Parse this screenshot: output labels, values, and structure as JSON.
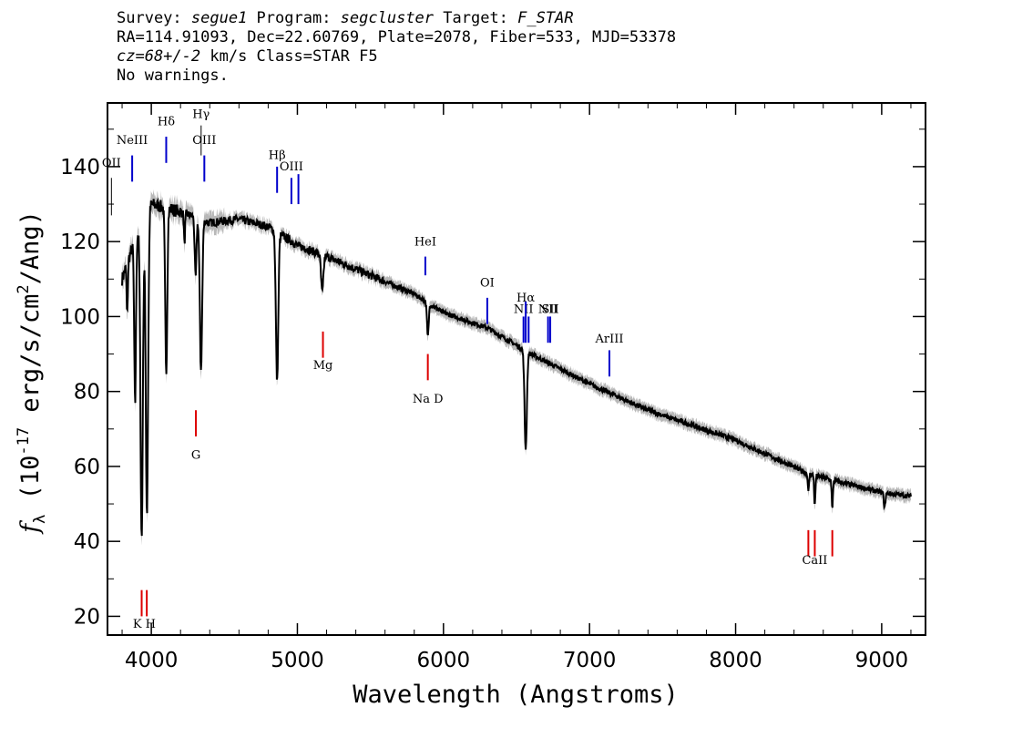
{
  "header": {
    "line1": {
      "survey_label": "Survey: ",
      "survey": "segue1",
      "program_label": " Program: ",
      "program": "segcluster",
      "target_label": " Target: ",
      "target": "F_STAR"
    },
    "line2": "RA=114.91093, Dec=22.60769, Plate=2078, Fiber=533, MJD=53378",
    "line3": {
      "cz": "cz=68+/-2",
      "rest": " km/s Class=STAR F5"
    },
    "line4": "No warnings."
  },
  "chart_data": {
    "type": "line",
    "xlabel": "Wavelength (Angstroms)",
    "ylabel_parts": {
      "f": "f",
      "sub": "λ",
      "open": " (10",
      "exp1": "-17",
      "mid": " erg/s/cm",
      "exp2": "2",
      "close": "/Ang)"
    },
    "xlim": [
      3700,
      9300
    ],
    "ylim": [
      15,
      157
    ],
    "xticks": [
      4000,
      5000,
      6000,
      7000,
      8000,
      9000
    ],
    "yticks": [
      20,
      40,
      60,
      80,
      100,
      120,
      140
    ],
    "continuum": [
      [
        3800,
        110
      ],
      [
        3900,
        122
      ],
      [
        4000,
        130
      ],
      [
        4200,
        128
      ],
      [
        4400,
        125
      ],
      [
        4600,
        126
      ],
      [
        4800,
        124
      ],
      [
        5000,
        119
      ],
      [
        5200,
        116
      ],
      [
        5500,
        111
      ],
      [
        5800,
        106
      ],
      [
        6000,
        101
      ],
      [
        6300,
        97
      ],
      [
        6600,
        90
      ],
      [
        7000,
        82
      ],
      [
        7400,
        75
      ],
      [
        8000,
        67
      ],
      [
        8500,
        58
      ],
      [
        9000,
        53
      ],
      [
        9200,
        52
      ]
    ],
    "absorption": [
      {
        "x": 3835,
        "depth": 14,
        "width": 4
      },
      {
        "x": 3889,
        "depth": 44,
        "width": 6
      },
      {
        "x": 3934,
        "depth": 84,
        "width": 8
      },
      {
        "x": 3970,
        "depth": 80,
        "width": 8
      },
      {
        "x": 4102,
        "depth": 44,
        "width": 7
      },
      {
        "x": 4227,
        "depth": 8,
        "width": 4
      },
      {
        "x": 4303,
        "depth": 16,
        "width": 6
      },
      {
        "x": 4340,
        "depth": 40,
        "width": 8
      },
      {
        "x": 4861,
        "depth": 40,
        "width": 8
      },
      {
        "x": 5170,
        "depth": 10,
        "width": 8
      },
      {
        "x": 5893,
        "depth": 9,
        "width": 6
      },
      {
        "x": 6563,
        "depth": 26,
        "width": 8
      },
      {
        "x": 8498,
        "depth": 5,
        "width": 4
      },
      {
        "x": 8542,
        "depth": 8,
        "width": 4
      },
      {
        "x": 8662,
        "depth": 8,
        "width": 4
      },
      {
        "x": 9020,
        "depth": 4,
        "width": 5
      }
    ],
    "emission_lines": [
      {
        "label": "OII",
        "wave": 3727,
        "label_y": 140,
        "tick_top": 137,
        "tick_bot": 127,
        "color": "#000000"
      },
      {
        "label": "NeIII",
        "wave": 3869,
        "label_y": 146,
        "tick_top": 143,
        "tick_bot": 136,
        "color": "#0000cc"
      },
      {
        "label": "Hδ",
        "wave": 4102,
        "label_y": 151,
        "tick_top": 148,
        "tick_bot": 141,
        "color": "#0000cc"
      },
      {
        "label": "Hγ",
        "wave": 4341,
        "label_y": 153,
        "tick_top": 151,
        "tick_bot": 143,
        "color": "#000000"
      },
      {
        "label": "OIII",
        "wave": 4363,
        "label_y": 146,
        "tick_top": 143,
        "tick_bot": 136,
        "color": "#0000cc"
      },
      {
        "label": "Hβ",
        "wave": 4861,
        "label_y": 142,
        "tick_top": 140,
        "tick_bot": 133,
        "color": "#0000cc"
      },
      {
        "label": "OIII",
        "wave": 4959,
        "label_y": 139,
        "tick_top": 137,
        "tick_bot": 130,
        "color": "#0000cc"
      },
      {
        "label": "",
        "wave": 5007,
        "label_y": 0,
        "tick_top": 138,
        "tick_bot": 130,
        "color": "#0000cc"
      },
      {
        "label": "HeI",
        "wave": 5876,
        "label_y": 119,
        "tick_top": 116,
        "tick_bot": 111,
        "color": "#0000cc"
      },
      {
        "label": "OI",
        "wave": 6300,
        "label_y": 108,
        "tick_top": 105,
        "tick_bot": 98,
        "color": "#0000cc"
      },
      {
        "label": "NII",
        "wave": 6548,
        "label_y": 101,
        "tick_top": 100,
        "tick_bot": 93,
        "color": "#0000cc"
      },
      {
        "label": "Hα",
        "wave": 6563,
        "label_y": 104,
        "tick_top": 104,
        "tick_bot": 93,
        "color": "#0000cc"
      },
      {
        "label": "",
        "wave": 6583,
        "label_y": 0,
        "tick_top": 100,
        "tick_bot": 93,
        "color": "#0000cc"
      },
      {
        "label": "NII",
        "wave": 6716,
        "label_y": 101,
        "tick_top": 100,
        "tick_bot": 93,
        "color": "#0000cc"
      },
      {
        "label": "SII",
        "wave": 6731,
        "label_y": 101,
        "tick_top": 100,
        "tick_bot": 93,
        "color": "#0000cc"
      },
      {
        "label": "ArIII",
        "wave": 7136,
        "label_y": 93,
        "tick_top": 91,
        "tick_bot": 84,
        "color": "#0000cc"
      }
    ],
    "absorption_labels": [
      {
        "label": "K H",
        "x_center": 3952,
        "label_y": 17,
        "marks": [
          {
            "wave": 3934,
            "top": 27,
            "bot": 20
          },
          {
            "wave": 3969,
            "top": 27,
            "bot": 20
          }
        ]
      },
      {
        "label": "G",
        "x_center": 4305,
        "label_y": 62,
        "marks": [
          {
            "wave": 4305,
            "top": 75,
            "bot": 68
          }
        ]
      },
      {
        "label": "Mg",
        "x_center": 5175,
        "label_y": 86,
        "marks": [
          {
            "wave": 5175,
            "top": 96,
            "bot": 89
          }
        ]
      },
      {
        "label": "Na D",
        "x_center": 5893,
        "label_y": 77,
        "marks": [
          {
            "wave": 5893,
            "top": 90,
            "bot": 83
          }
        ]
      },
      {
        "label": "CaII",
        "x_center": 8542,
        "label_y": 34,
        "marks": [
          {
            "wave": 8498,
            "top": 43,
            "bot": 36
          },
          {
            "wave": 8542,
            "top": 43,
            "bot": 36
          },
          {
            "wave": 8662,
            "top": 43,
            "bot": 36
          }
        ]
      }
    ],
    "colors": {
      "flux": "#000000",
      "error": "#b8b8b8",
      "absorption_marker": "#dd0000",
      "emission_marker": "#0000cc",
      "axis": "#000000"
    },
    "grid": false,
    "legend": "none"
  }
}
